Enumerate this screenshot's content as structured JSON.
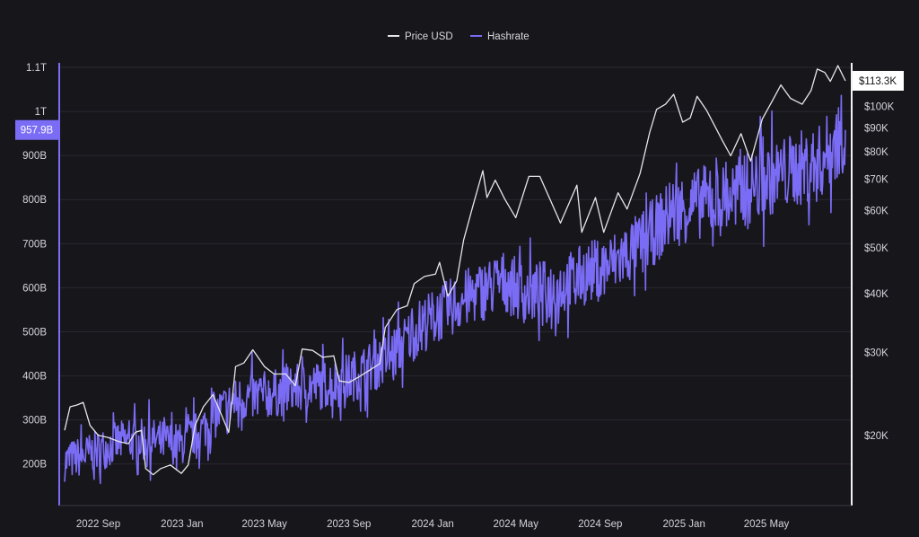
{
  "chart_data": {
    "type": "line",
    "title": "",
    "legend": {
      "placement": "top-center",
      "items": [
        {
          "label": "Price USD",
          "color": "#e6e6ea"
        },
        {
          "label": "Hashrate",
          "color": "#7b6cf6"
        }
      ]
    },
    "x_axis": {
      "type": "date",
      "range": [
        "2022-07-14",
        "2025-08-24"
      ],
      "ticks": [
        {
          "date": "2022-09-01",
          "label": "2022 Sep"
        },
        {
          "date": "2023-01-01",
          "label": "2023 Jan"
        },
        {
          "date": "2023-05-01",
          "label": "2023 May"
        },
        {
          "date": "2023-09-01",
          "label": "2023 Sep"
        },
        {
          "date": "2024-01-01",
          "label": "2024 Jan"
        },
        {
          "date": "2024-05-01",
          "label": "2024 May"
        },
        {
          "date": "2024-09-01",
          "label": "2024 Sep"
        },
        {
          "date": "2025-01-01",
          "label": "2025 Jan"
        },
        {
          "date": "2025-05-01",
          "label": "2025 May"
        }
      ]
    },
    "y_axis_left": {
      "series": "Hashrate",
      "scale": "linear",
      "range": [
        120,
        1100
      ],
      "unit_note": "billions",
      "ticks": [
        {
          "value": 1100,
          "label": "1.1T"
        },
        {
          "value": 1000,
          "label": "1T"
        },
        {
          "value": 900,
          "label": "900B"
        },
        {
          "value": 800,
          "label": "800B"
        },
        {
          "value": 700,
          "label": "700B"
        },
        {
          "value": 600,
          "label": "600B"
        },
        {
          "value": 500,
          "label": "500B"
        },
        {
          "value": 400,
          "label": "400B"
        },
        {
          "value": 300,
          "label": "300B"
        },
        {
          "value": 200,
          "label": "200B"
        }
      ],
      "current": {
        "value": 957.9,
        "label": "957.9B"
      }
    },
    "y_axis_right": {
      "series": "Price USD",
      "scale": "log",
      "range": [
        14500,
        121000
      ],
      "ticks": [
        {
          "value": 100000,
          "label": "$100K"
        },
        {
          "value": 90000,
          "label": "$90K"
        },
        {
          "value": 80000,
          "label": "$80K"
        },
        {
          "value": 70000,
          "label": "$70K"
        },
        {
          "value": 60000,
          "label": "$60K"
        },
        {
          "value": 50000,
          "label": "$50K"
        },
        {
          "value": 40000,
          "label": "$40K"
        },
        {
          "value": 30000,
          "label": "$30K"
        },
        {
          "value": 20000,
          "label": "$20K"
        }
      ],
      "current": {
        "value": 113300,
        "label": "$113.3K"
      }
    },
    "grid": true,
    "series": [
      {
        "name": "Price USD",
        "color": "#e6e6ea",
        "axis": "right",
        "points": [
          [
            "2022-07-14",
            20500
          ],
          [
            "2022-07-22",
            23000
          ],
          [
            "2022-08-01",
            23200
          ],
          [
            "2022-08-10",
            23500
          ],
          [
            "2022-08-20",
            21000
          ],
          [
            "2022-09-01",
            20000
          ],
          [
            "2022-09-15",
            19800
          ],
          [
            "2022-10-01",
            19400
          ],
          [
            "2022-10-15",
            19200
          ],
          [
            "2022-10-25",
            20300
          ],
          [
            "2022-11-03",
            20500
          ],
          [
            "2022-11-09",
            17000
          ],
          [
            "2022-11-20",
            16500
          ],
          [
            "2022-12-01",
            17000
          ],
          [
            "2022-12-15",
            17300
          ],
          [
            "2022-12-31",
            16600
          ],
          [
            "2023-01-10",
            17300
          ],
          [
            "2023-01-20",
            21000
          ],
          [
            "2023-02-01",
            23000
          ],
          [
            "2023-02-15",
            24400
          ],
          [
            "2023-03-10",
            20300
          ],
          [
            "2023-03-20",
            28000
          ],
          [
            "2023-04-01",
            28500
          ],
          [
            "2023-04-14",
            30400
          ],
          [
            "2023-05-01",
            28000
          ],
          [
            "2023-05-15",
            27000
          ],
          [
            "2023-06-01",
            27000
          ],
          [
            "2023-06-15",
            25500
          ],
          [
            "2023-06-25",
            30500
          ],
          [
            "2023-07-10",
            30300
          ],
          [
            "2023-07-25",
            29300
          ],
          [
            "2023-08-10",
            29500
          ],
          [
            "2023-08-18",
            26100
          ],
          [
            "2023-09-01",
            25900
          ],
          [
            "2023-09-15",
            26600
          ],
          [
            "2023-10-01",
            27500
          ],
          [
            "2023-10-16",
            28400
          ],
          [
            "2023-10-24",
            33900
          ],
          [
            "2023-11-10",
            37000
          ],
          [
            "2023-11-25",
            37700
          ],
          [
            "2023-12-05",
            42000
          ],
          [
            "2023-12-20",
            43500
          ],
          [
            "2024-01-05",
            44000
          ],
          [
            "2024-01-11",
            46600
          ],
          [
            "2024-01-23",
            39500
          ],
          [
            "2024-02-05",
            42600
          ],
          [
            "2024-02-15",
            52000
          ],
          [
            "2024-02-28",
            61000
          ],
          [
            "2024-03-14",
            73000
          ],
          [
            "2024-03-20",
            64000
          ],
          [
            "2024-04-01",
            69700
          ],
          [
            "2024-04-15",
            63500
          ],
          [
            "2024-05-01",
            58000
          ],
          [
            "2024-05-20",
            71000
          ],
          [
            "2024-06-05",
            71000
          ],
          [
            "2024-06-25",
            61000
          ],
          [
            "2024-07-05",
            56500
          ],
          [
            "2024-07-29",
            68000
          ],
          [
            "2024-08-05",
            54000
          ],
          [
            "2024-08-25",
            64000
          ],
          [
            "2024-09-06",
            54000
          ],
          [
            "2024-09-27",
            65500
          ],
          [
            "2024-10-10",
            60500
          ],
          [
            "2024-10-29",
            72000
          ],
          [
            "2024-11-12",
            88000
          ],
          [
            "2024-11-22",
            98500
          ],
          [
            "2024-12-05",
            101000
          ],
          [
            "2024-12-17",
            106000
          ],
          [
            "2024-12-30",
            92500
          ],
          [
            "2025-01-10",
            94500
          ],
          [
            "2025-01-20",
            105000
          ],
          [
            "2025-02-03",
            98000
          ],
          [
            "2025-02-26",
            84500
          ],
          [
            "2025-03-10",
            78500
          ],
          [
            "2025-03-25",
            87500
          ],
          [
            "2025-04-08",
            76500
          ],
          [
            "2025-04-25",
            94000
          ],
          [
            "2025-05-10",
            103000
          ],
          [
            "2025-05-22",
            111000
          ],
          [
            "2025-06-05",
            104000
          ],
          [
            "2025-06-22",
            101000
          ],
          [
            "2025-07-05",
            108000
          ],
          [
            "2025-07-14",
            120000
          ],
          [
            "2025-07-25",
            118000
          ],
          [
            "2025-08-02",
            113000
          ],
          [
            "2025-08-13",
            122000
          ],
          [
            "2025-08-24",
            113300
          ]
        ]
      },
      {
        "name": "Hashrate",
        "color": "#7b6cf6",
        "axis": "left",
        "trend_points": [
          [
            "2022-07-14",
            205
          ],
          [
            "2022-09-01",
            230
          ],
          [
            "2022-10-01",
            250
          ],
          [
            "2022-11-15",
            255
          ],
          [
            "2022-12-31",
            245
          ],
          [
            "2023-01-31",
            280
          ],
          [
            "2023-03-01",
            325
          ],
          [
            "2023-04-01",
            350
          ],
          [
            "2023-05-15",
            360
          ],
          [
            "2023-07-01",
            375
          ],
          [
            "2023-08-15",
            385
          ],
          [
            "2023-09-15",
            405
          ],
          [
            "2023-11-01",
            445
          ],
          [
            "2023-12-15",
            515
          ],
          [
            "2024-01-15",
            545
          ],
          [
            "2024-03-01",
            585
          ],
          [
            "2024-04-15",
            615
          ],
          [
            "2024-05-15",
            585
          ],
          [
            "2024-07-01",
            600
          ],
          [
            "2024-08-15",
            635
          ],
          [
            "2024-09-15",
            650
          ],
          [
            "2024-11-01",
            700
          ],
          [
            "2024-12-15",
            770
          ],
          [
            "2025-01-15",
            790
          ],
          [
            "2025-03-01",
            800
          ],
          [
            "2025-05-01",
            845
          ],
          [
            "2025-06-15",
            870
          ],
          [
            "2025-07-15",
            880
          ],
          [
            "2025-08-24",
            958
          ]
        ],
        "daily_spread": 55
      }
    ]
  }
}
